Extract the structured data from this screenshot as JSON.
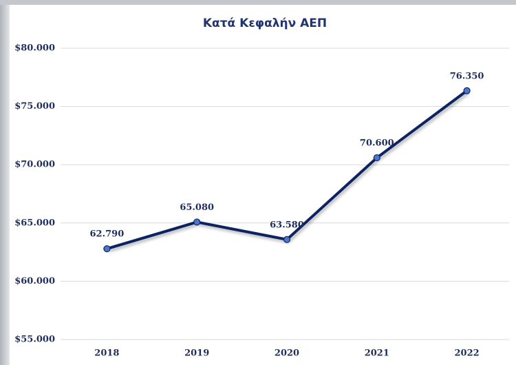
{
  "chart_data": {
    "type": "line",
    "title": "Κατά Κεφαλήν ΑΕΠ",
    "categories": [
      "2018",
      "2019",
      "2020",
      "2021",
      "2022"
    ],
    "series": [
      {
        "name": "Κατά Κεφαλήν ΑΕΠ",
        "color": "#0f2160",
        "marker_color": "#4a78c8",
        "values": [
          62790,
          65080,
          63580,
          70600,
          76350
        ],
        "value_labels": [
          "62.790",
          "65.080",
          "63.580",
          "70.600",
          "76.350"
        ]
      }
    ],
    "ylim": [
      55000,
      80000
    ],
    "yticks": [
      {
        "value": 55000,
        "label": "$55.000"
      },
      {
        "value": 60000,
        "label": "$60.000"
      },
      {
        "value": 65000,
        "label": "$65.000"
      },
      {
        "value": 70000,
        "label": "$70.000"
      },
      {
        "value": 75000,
        "label": "$75.000"
      },
      {
        "value": 80000,
        "label": "$80.000"
      }
    ],
    "grid": true
  }
}
